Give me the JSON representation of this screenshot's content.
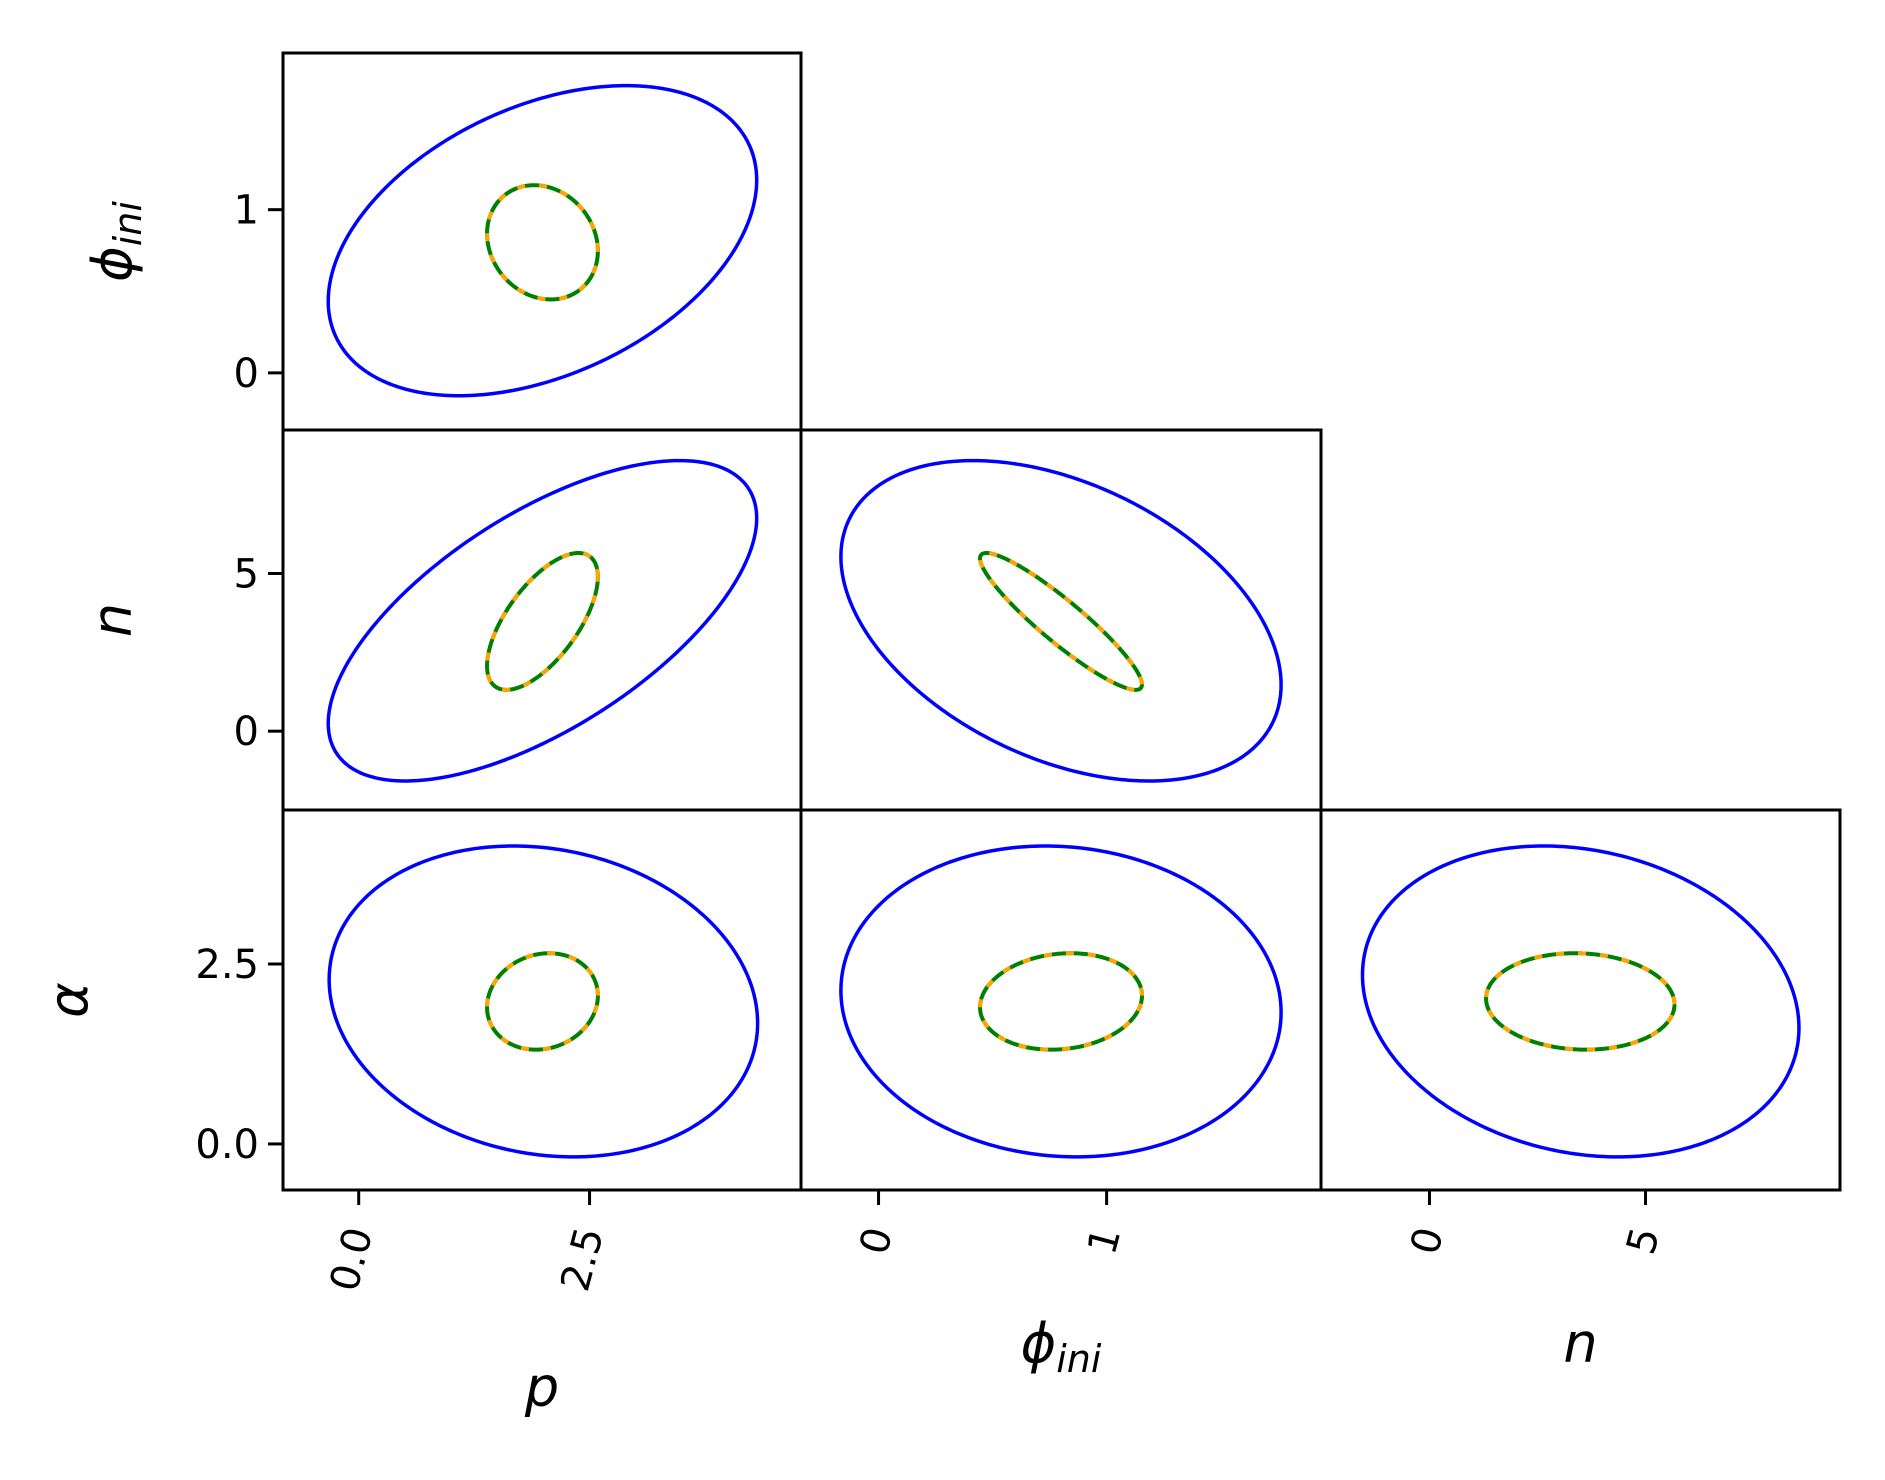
{
  "chart_data": [
    {
      "type": "ellipse",
      "xlim": [
        -0.82,
        4.79
      ],
      "ylim": [
        -0.35,
        1.96
      ],
      "yticks": [
        0,
        1
      ],
      "ylabel": [
        "ϕ",
        "ini"
      ],
      "series": [
        {
          "color": "blue",
          "center": [
            1.99,
            0.81
          ],
          "half": [
            2.32,
            0.95
          ],
          "rho": 0.39,
          "linestyle": "solid"
        },
        {
          "color": "green",
          "center": [
            1.99,
            0.8
          ],
          "half": [
            0.6,
            0.35
          ],
          "rho": -0.15,
          "linestyle": "solid"
        },
        {
          "color": "orange",
          "center": [
            1.99,
            0.8
          ],
          "half": [
            0.6,
            0.35
          ],
          "rho": -0.15,
          "linestyle": "dashed"
        }
      ]
    },
    {
      "type": "ellipse",
      "xlim": [
        -0.82,
        4.79
      ],
      "ylim": [
        -2.5,
        9.55
      ],
      "yticks": [
        0,
        5
      ],
      "ylabel": [
        "n"
      ],
      "series": [
        {
          "color": "blue",
          "center": [
            1.99,
            3.5
          ],
          "half": [
            2.32,
            5.08
          ],
          "rho": 0.64,
          "linestyle": "solid"
        },
        {
          "color": "green",
          "center": [
            1.99,
            3.48
          ],
          "half": [
            0.6,
            2.17
          ],
          "rho": 0.65,
          "linestyle": "solid"
        },
        {
          "color": "orange",
          "center": [
            1.99,
            3.48
          ],
          "half": [
            0.6,
            2.17
          ],
          "rho": 0.65,
          "linestyle": "dashed"
        }
      ]
    },
    {
      "type": "ellipse",
      "xlim": [
        -0.34,
        1.94
      ],
      "ylim": [
        -2.5,
        9.55
      ],
      "series": [
        {
          "color": "blue",
          "center": [
            0.8,
            3.5
          ],
          "half": [
            0.965,
            5.08
          ],
          "rho": -0.4,
          "linestyle": "solid"
        },
        {
          "color": "green",
          "center": [
            0.8,
            3.48
          ],
          "half": [
            0.355,
            2.17
          ],
          "rho": -0.92,
          "linestyle": "solid"
        },
        {
          "color": "orange",
          "center": [
            0.8,
            3.48
          ],
          "half": [
            0.355,
            2.17
          ],
          "rho": -0.92,
          "linestyle": "dashed"
        }
      ]
    },
    {
      "type": "ellipse",
      "xlim": [
        -0.82,
        4.79
      ],
      "ylim": [
        -0.64,
        4.64
      ],
      "xticks": [
        {
          "value": 0,
          "label": "0.0"
        },
        2.5
      ],
      "yticks": [
        {
          "value": 0,
          "label": "0.0"
        },
        2.5
      ],
      "xlabel": [
        "p"
      ],
      "ylabel": [
        "α"
      ],
      "series": [
        {
          "color": "blue",
          "center": [
            2.0,
            1.98
          ],
          "half": [
            2.32,
            2.16
          ],
          "rho": -0.14,
          "linestyle": "solid"
        },
        {
          "color": "green",
          "center": [
            1.99,
            1.98
          ],
          "half": [
            0.6,
            0.67
          ],
          "rho": 0.12,
          "linestyle": "solid"
        },
        {
          "color": "orange",
          "center": [
            1.99,
            1.98
          ],
          "half": [
            0.6,
            0.67
          ],
          "rho": 0.12,
          "linestyle": "dashed"
        }
      ]
    },
    {
      "type": "ellipse",
      "xlim": [
        -0.34,
        1.94
      ],
      "ylim": [
        -0.64,
        4.64
      ],
      "xticks": [
        0,
        1
      ],
      "xlabel": [
        "ϕ",
        "ini"
      ],
      "series": [
        {
          "color": "blue",
          "center": [
            0.8,
            1.98
          ],
          "half": [
            0.965,
            2.16
          ],
          "rho": -0.07,
          "linestyle": "solid"
        },
        {
          "color": "green",
          "center": [
            0.8,
            1.98
          ],
          "half": [
            0.355,
            0.67
          ],
          "rho": 0.12,
          "linestyle": "solid"
        },
        {
          "color": "orange",
          "center": [
            0.8,
            1.98
          ],
          "half": [
            0.355,
            0.67
          ],
          "rho": 0.12,
          "linestyle": "dashed"
        }
      ]
    },
    {
      "type": "ellipse",
      "xlim": [
        -2.51,
        9.5
      ],
      "ylim": [
        -0.64,
        4.64
      ],
      "xticks": [
        0,
        5
      ],
      "xlabel": [
        "n"
      ],
      "series": [
        {
          "color": "blue",
          "center": [
            3.5,
            1.98
          ],
          "half": [
            5.05,
            2.16
          ],
          "rho": -0.17,
          "linestyle": "solid"
        },
        {
          "color": "green",
          "center": [
            3.49,
            1.98
          ],
          "half": [
            2.18,
            0.67
          ],
          "rho": -0.06,
          "linestyle": "solid"
        },
        {
          "color": "orange",
          "center": [
            3.49,
            1.98
          ],
          "half": [
            2.18,
            0.67
          ],
          "rho": -0.06,
          "linestyle": "dashed"
        }
      ]
    }
  ]
}
